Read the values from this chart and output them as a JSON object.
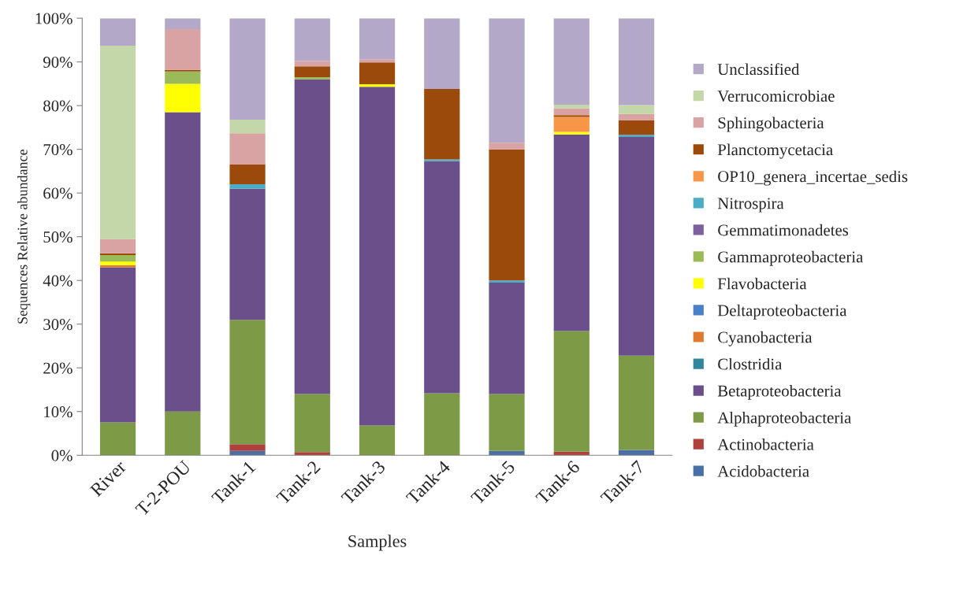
{
  "chart_data": {
    "type": "bar",
    "stacked": true,
    "xlabel": "Samples",
    "ylabel": "Sequences Relative abundance",
    "categories": [
      "River",
      "T-2-POU",
      "Tank-1",
      "Tank-2",
      "Tank-3",
      "Tank-4",
      "Tank-5",
      "Tank-6",
      "Tank-7"
    ],
    "ylim": [
      0,
      100
    ],
    "yticks": [
      {
        "value": 0,
        "label": "0%"
      },
      {
        "value": 10,
        "label": "10%"
      },
      {
        "value": 20,
        "label": "20%"
      },
      {
        "value": 30,
        "label": "30%"
      },
      {
        "value": 40,
        "label": "40%"
      },
      {
        "value": 50,
        "label": "50%"
      },
      {
        "value": 60,
        "label": "60%"
      },
      {
        "value": 70,
        "label": "70%"
      },
      {
        "value": 80,
        "label": "80%"
      },
      {
        "value": 90,
        "label": "90%"
      },
      {
        "value": 100,
        "label": "100%"
      }
    ],
    "grid": false,
    "legend": "right",
    "series": [
      {
        "name": "Acidobacteria",
        "color": "#4a6fa5",
        "values": [
          0,
          0,
          1,
          0,
          0,
          0,
          1,
          0,
          1.2
        ]
      },
      {
        "name": "Actinobacteria",
        "color": "#b0403c",
        "values": [
          0,
          0,
          1.5,
          0.7,
          0,
          0,
          0,
          0.8,
          0
        ]
      },
      {
        "name": "Alphaproteobacteria",
        "color": "#7d9b47",
        "values": [
          7.5,
          10,
          28.5,
          13.3,
          6.8,
          14.2,
          13,
          27.6,
          21.6
        ]
      },
      {
        "name": "Betaproteobacteria",
        "color": "#6a4f8a",
        "values": [
          35.5,
          68.5,
          30,
          72,
          77.5,
          53.1,
          25.5,
          45,
          50
        ]
      },
      {
        "name": "Clostridia",
        "color": "#31859c",
        "values": [
          0,
          0,
          0,
          0,
          0,
          0,
          0,
          0,
          0
        ]
      },
      {
        "name": "Cyanobacteria",
        "color": "#e07a2e",
        "values": [
          0.5,
          0,
          0,
          0,
          0,
          0,
          0,
          0,
          0
        ]
      },
      {
        "name": "Deltaproteobacteria",
        "color": "#4a80c8",
        "values": [
          0,
          0,
          0,
          0,
          0,
          0,
          0,
          0,
          0
        ]
      },
      {
        "name": "Flavobacteria",
        "color": "#ffff00",
        "values": [
          0.8,
          6.5,
          0,
          0,
          0.6,
          0,
          0,
          0.6,
          0
        ]
      },
      {
        "name": "Gammaproteobacteria",
        "color": "#9bbb59",
        "values": [
          1.5,
          2.8,
          0,
          0.5,
          0,
          0,
          0,
          0,
          0
        ]
      },
      {
        "name": "Gemmatimonadetes",
        "color": "#7d60a0",
        "values": [
          0,
          0,
          0,
          0,
          0,
          0,
          0,
          0,
          0
        ]
      },
      {
        "name": "Nitrospira",
        "color": "#4bacc6",
        "values": [
          0,
          0,
          1,
          0,
          0,
          0.4,
          0.5,
          0,
          0.5
        ]
      },
      {
        "name": "OP10_genera_incertae_sedis",
        "color": "#f79646",
        "values": [
          0,
          0,
          0,
          0,
          0,
          0,
          0,
          3.4,
          0
        ]
      },
      {
        "name": "Planctomycetacia",
        "color": "#9c4a0c",
        "values": [
          0.4,
          0.4,
          4.5,
          2.5,
          5,
          16.1,
          30,
          0.4,
          3.3
        ]
      },
      {
        "name": "Sphingobacteria",
        "color": "#d9a3a3",
        "values": [
          3.3,
          9.3,
          7.2,
          1.2,
          0.7,
          0,
          1.5,
          1.6,
          1.5
        ]
      },
      {
        "name": "Verrucomicrobiae",
        "color": "#c4d7a8",
        "values": [
          44.2,
          0,
          3.1,
          0,
          0,
          0,
          0,
          0.8,
          2
        ]
      },
      {
        "name": "Unclassified",
        "color": "#b3a8c8",
        "values": [
          6.3,
          2.5,
          23.2,
          9.8,
          9.4,
          16.2,
          28.5,
          19.8,
          19.9
        ]
      }
    ]
  }
}
